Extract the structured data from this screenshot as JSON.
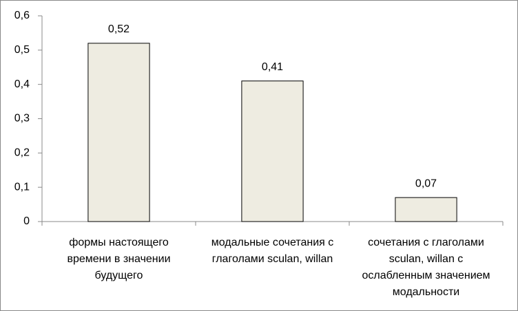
{
  "chart_data": {
    "type": "bar",
    "categories": [
      "формы настоящего времени в значении будущего",
      "модальные сочетания с глаголами sculan, willan",
      "сочетания с глаголами sculan, willan с ослабленным значением модальности"
    ],
    "values": [
      0.52,
      0.41,
      0.07
    ],
    "value_labels": [
      "0,52",
      "0,41",
      "0,07"
    ],
    "color": "#eeece1",
    "ylim": [
      0,
      0.6
    ],
    "yticks": [
      0,
      {
        "value": 0.1,
        "label": "0,1"
      },
      {
        "value": 0.2,
        "label": "0,2"
      },
      {
        "value": 0.3,
        "label": "0,3"
      },
      {
        "value": 0.4,
        "label": "0,4"
      },
      {
        "value": 0.5,
        "label": "0,5"
      },
      {
        "value": 0.6,
        "label": "0,6"
      }
    ],
    "grid": false
  }
}
